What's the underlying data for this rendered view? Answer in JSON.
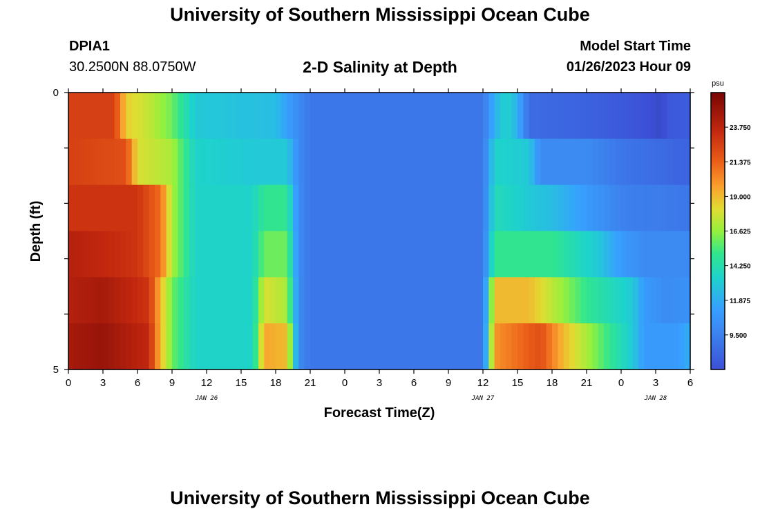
{
  "header": {
    "title": "University of Southern Mississippi Ocean Cube",
    "station": "DPIA1",
    "coordinates": "30.2500N  88.0750W",
    "subtitle": "2-D Salinity at Depth",
    "model_start_label": "Model Start Time",
    "model_start_value": "01/26/2023 Hour 09"
  },
  "footer": {
    "title": "University of Southern Mississippi Ocean Cube"
  },
  "chart_data": {
    "type": "heatmap",
    "title": "2-D Salinity at Depth",
    "xlabel": "Forecast Time(Z)",
    "ylabel": "Depth (ft)",
    "x_tick_labels": [
      "0",
      "3",
      "6",
      "9",
      "12",
      "15",
      "18",
      "21",
      "0",
      "3",
      "6",
      "9",
      "12",
      "15",
      "18",
      "21",
      "0",
      "3",
      "6"
    ],
    "x_range_hours": [
      0,
      54
    ],
    "date_labels": [
      {
        "text": "JAN 26",
        "hour": 12
      },
      {
        "text": "JAN 27",
        "hour": 36
      },
      {
        "text": "JAN 28",
        "hour": 51
      }
    ],
    "y_tick_labels": [
      "0",
      "5"
    ],
    "y_range": [
      0,
      5
    ],
    "depth_layers": 6,
    "colorbar": {
      "unit": "psu",
      "ticks": [
        "23.750",
        "21.375",
        "19.000",
        "16.625",
        "14.250",
        "11.875",
        "9.500"
      ],
      "range": [
        7.125,
        26.125
      ]
    },
    "layers": [
      {
        "depth_index": 0,
        "keyframes": [
          [
            0,
            22.5
          ],
          [
            4,
            22.5
          ],
          [
            5,
            18.5
          ],
          [
            7,
            17.5
          ],
          [
            9,
            16
          ],
          [
            11,
            13
          ],
          [
            18,
            12.5
          ],
          [
            20,
            10
          ],
          [
            21,
            9
          ],
          [
            33,
            9
          ],
          [
            36,
            9
          ],
          [
            37,
            12
          ],
          [
            38,
            13.5
          ],
          [
            39,
            12
          ],
          [
            40,
            8.5
          ],
          [
            45,
            8
          ],
          [
            48,
            7.6
          ],
          [
            50,
            7.2
          ],
          [
            51,
            6.9
          ],
          [
            51.5,
            6.5
          ],
          [
            52,
            7.5
          ],
          [
            54,
            7.8
          ]
        ]
      },
      {
        "depth_index": 1,
        "keyframes": [
          [
            0,
            22.5
          ],
          [
            5,
            22
          ],
          [
            6,
            18
          ],
          [
            9,
            17
          ],
          [
            11,
            13.5
          ],
          [
            16,
            13
          ],
          [
            19,
            13
          ],
          [
            20,
            10
          ],
          [
            21,
            9
          ],
          [
            33,
            9
          ],
          [
            36,
            9
          ],
          [
            37,
            13.5
          ],
          [
            40,
            13
          ],
          [
            41,
            10
          ],
          [
            45,
            10
          ],
          [
            48,
            9
          ],
          [
            54,
            8
          ]
        ]
      },
      {
        "depth_index": 2,
        "keyframes": [
          [
            0,
            23
          ],
          [
            6,
            23
          ],
          [
            8,
            21
          ],
          [
            9,
            17
          ],
          [
            11,
            13.5
          ],
          [
            16,
            13.5
          ],
          [
            17,
            15
          ],
          [
            19,
            15
          ],
          [
            20,
            10
          ],
          [
            21,
            9
          ],
          [
            33,
            9
          ],
          [
            36,
            9
          ],
          [
            37,
            14
          ],
          [
            40,
            13
          ],
          [
            42,
            12.5
          ],
          [
            46,
            10.5
          ],
          [
            48,
            9.5
          ],
          [
            54,
            9
          ]
        ]
      },
      {
        "depth_index": 3,
        "keyframes": [
          [
            0,
            24
          ],
          [
            6,
            23
          ],
          [
            8,
            21
          ],
          [
            9,
            17
          ],
          [
            11,
            13.5
          ],
          [
            16,
            13.5
          ],
          [
            17,
            16
          ],
          [
            19,
            16
          ],
          [
            20,
            10
          ],
          [
            21,
            9
          ],
          [
            33,
            9
          ],
          [
            36,
            9
          ],
          [
            37,
            15
          ],
          [
            42,
            15
          ],
          [
            46,
            13
          ],
          [
            48,
            11
          ],
          [
            50,
            10
          ],
          [
            54,
            10
          ]
        ]
      },
      {
        "depth_index": 4,
        "keyframes": [
          [
            0,
            24
          ],
          [
            3,
            24.5
          ],
          [
            7,
            23
          ],
          [
            8,
            19
          ],
          [
            9,
            16
          ],
          [
            11,
            13.5
          ],
          [
            16,
            13.5
          ],
          [
            17,
            18
          ],
          [
            19,
            17
          ],
          [
            20,
            10
          ],
          [
            21,
            9
          ],
          [
            33,
            9
          ],
          [
            36,
            9
          ],
          [
            37,
            19
          ],
          [
            40,
            19
          ],
          [
            45,
            15
          ],
          [
            49,
            13
          ],
          [
            50,
            11
          ],
          [
            52,
            10
          ],
          [
            54,
            10.5
          ]
        ]
      },
      {
        "depth_index": 5,
        "keyframes": [
          [
            0,
            24.5
          ],
          [
            3,
            25
          ],
          [
            7,
            23.5
          ],
          [
            8,
            19
          ],
          [
            9,
            16
          ],
          [
            11,
            13.5
          ],
          [
            16,
            13.5
          ],
          [
            17,
            19.5
          ],
          [
            19,
            19
          ],
          [
            20,
            10
          ],
          [
            21,
            9
          ],
          [
            33,
            9
          ],
          [
            36,
            9
          ],
          [
            37,
            20
          ],
          [
            41,
            22
          ],
          [
            43,
            19
          ],
          [
            46,
            16
          ],
          [
            49,
            13
          ],
          [
            50,
            11
          ],
          [
            53,
            11
          ],
          [
            54,
            12
          ]
        ]
      }
    ]
  }
}
